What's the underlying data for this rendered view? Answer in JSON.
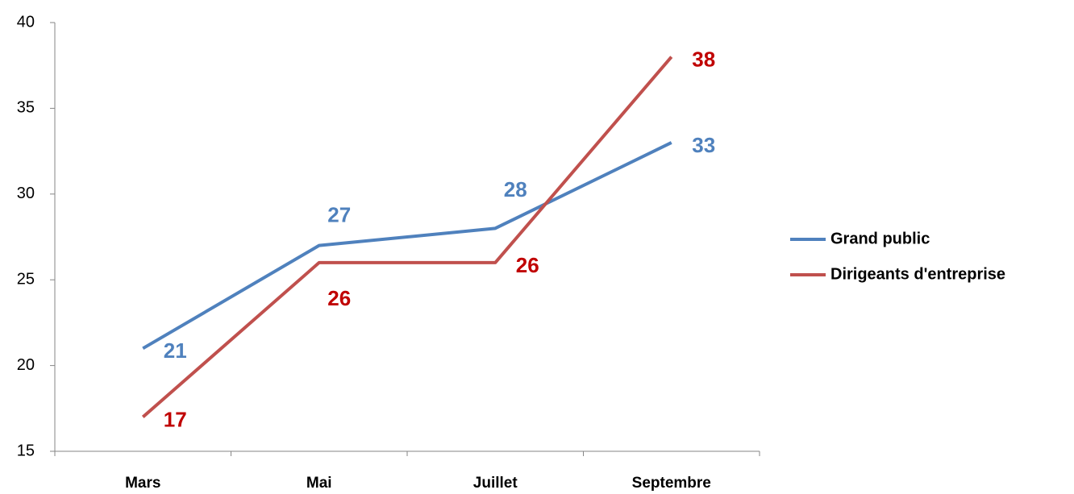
{
  "chart_data": {
    "type": "line",
    "categories": [
      "Mars",
      "Mai",
      "Juillet",
      "Septembre"
    ],
    "series": [
      {
        "name": "Grand public",
        "color": "#4f81bd",
        "label_color": "#4f81bd",
        "values": [
          21,
          27,
          28,
          33
        ]
      },
      {
        "name": "Dirigeants d'entreprise",
        "color": "#c0504d",
        "label_color": "#c00000",
        "values": [
          17,
          26,
          26,
          38
        ]
      }
    ],
    "ylim": [
      15,
      40
    ],
    "yticks": [
      15,
      20,
      25,
      30,
      35,
      40
    ],
    "grid": false,
    "legend": "right"
  }
}
